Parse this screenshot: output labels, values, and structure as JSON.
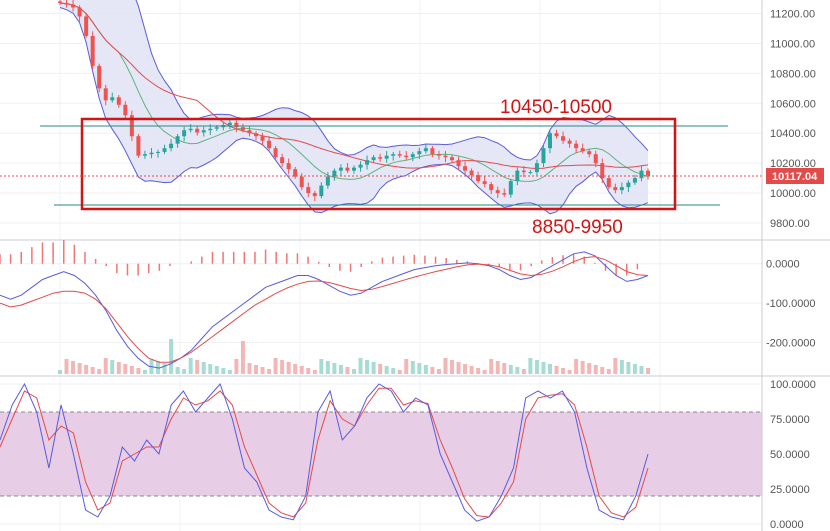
{
  "chart_data": [
    {
      "type": "candlestick",
      "panel": "price",
      "y_ticks": [
        "11200.00",
        "11000.00",
        "10800.00",
        "10600.00",
        "10400.00",
        "10200.00",
        "10000.00",
        "9800.00"
      ],
      "ylim": [
        9700,
        11290
      ],
      "current_price_label": "10117.04",
      "annotations": [
        "10450-10500",
        "8850-9950"
      ],
      "indicators": [
        "Bollinger Bands",
        "Moving average (red)",
        "Moving average (green)"
      ],
      "close_series": [
        11270,
        11260,
        11240,
        11180,
        11050,
        10850,
        10700,
        10620,
        10640,
        10590,
        10520,
        10380,
        10250,
        10260,
        10270,
        10275,
        10300,
        10330,
        10380,
        10420,
        10430,
        10405,
        10420,
        10430,
        10440,
        10455,
        10470,
        10440,
        10420,
        10400,
        10380,
        10350,
        10300,
        10240,
        10200,
        10160,
        10110,
        10040,
        10000,
        9980,
        10050,
        10110,
        10150,
        10170,
        10150,
        10170,
        10190,
        10220,
        10240,
        10230,
        10250,
        10260,
        10250,
        10240,
        10260,
        10280,
        10300,
        10260,
        10250,
        10240,
        10220,
        10180,
        10150,
        10120,
        10080,
        10060,
        10020,
        10000,
        9990,
        10080,
        10150,
        10140,
        10140,
        10200,
        10300,
        10400,
        10380,
        10350,
        10330,
        10300,
        10280,
        10260,
        10200,
        10100,
        10040,
        10020,
        10040,
        10070,
        10100,
        10150,
        10117
      ]
    },
    {
      "type": "macd",
      "panel": "macd",
      "y_ticks": [
        "0.0000",
        "-100.0000",
        "-200.0000"
      ],
      "ylim": [
        -280,
        50
      ],
      "macd_series": [
        -80,
        -90,
        -80,
        -60,
        -40,
        -30,
        -20,
        -30,
        -50,
        -80,
        -120,
        -170,
        -210,
        -240,
        -260,
        -265,
        -255,
        -240,
        -220,
        -190,
        -160,
        -140,
        -120,
        -100,
        -80,
        -60,
        -50,
        -40,
        -30,
        -30,
        -40,
        -55,
        -70,
        -80,
        -75,
        -60,
        -45,
        -35,
        -25,
        -15,
        -10,
        -5,
        -2,
        0,
        2,
        0,
        -5,
        -15,
        -30,
        -40,
        -35,
        -20,
        -5,
        10,
        25,
        30,
        20,
        -5,
        -30,
        -45,
        -40,
        -30
      ],
      "signal_series": [
        -100,
        -110,
        -105,
        -95,
        -85,
        -75,
        -70,
        -70,
        -75,
        -90,
        -115,
        -150,
        -185,
        -215,
        -240,
        -250,
        -250,
        -240,
        -225,
        -205,
        -185,
        -165,
        -145,
        -125,
        -105,
        -90,
        -75,
        -62,
        -52,
        -45,
        -44,
        -48,
        -55,
        -63,
        -68,
        -65,
        -58,
        -50,
        -42,
        -34,
        -27,
        -20,
        -14,
        -8,
        -3,
        -1,
        -3,
        -8,
        -17,
        -26,
        -30,
        -27,
        -19,
        -8,
        5,
        15,
        18,
        10,
        -5,
        -20,
        -28,
        -30
      ]
    },
    {
      "type": "stochastic",
      "panel": "stoch",
      "y_ticks": [
        "100.0000",
        "75.0000",
        "50.0000",
        "25.0000",
        "0.0000"
      ],
      "ylim": [
        0,
        100
      ],
      "band": [
        20,
        80
      ],
      "k_series": [
        60,
        85,
        100,
        80,
        40,
        85,
        50,
        10,
        5,
        20,
        55,
        45,
        60,
        50,
        85,
        95,
        80,
        90,
        100,
        75,
        40,
        30,
        10,
        5,
        3,
        20,
        80,
        95,
        60,
        70,
        90,
        100,
        95,
        80,
        90,
        85,
        50,
        30,
        10,
        2,
        5,
        20,
        40,
        90,
        95,
        90,
        95,
        80,
        40,
        10,
        5,
        3,
        20,
        50
      ],
      "d_series": [
        55,
        75,
        95,
        90,
        60,
        70,
        65,
        30,
        10,
        15,
        45,
        50,
        55,
        55,
        75,
        90,
        85,
        88,
        95,
        85,
        55,
        35,
        15,
        8,
        5,
        15,
        60,
        88,
        75,
        70,
        85,
        97,
        97,
        85,
        88,
        86,
        60,
        40,
        18,
        6,
        5,
        15,
        30,
        75,
        90,
        92,
        93,
        85,
        55,
        20,
        8,
        5,
        12,
        40
      ]
    }
  ],
  "colors": {
    "up": "#26a69a",
    "down": "#ef5350",
    "annotation": "#d11414",
    "bb_fill": "#e1e3f6",
    "bb_line": "#5a5bdc",
    "ma_red": "#e34b4b",
    "ma_green": "#62b27c",
    "stoch_band": "#e8cde6",
    "grid": "#eef0f3"
  }
}
